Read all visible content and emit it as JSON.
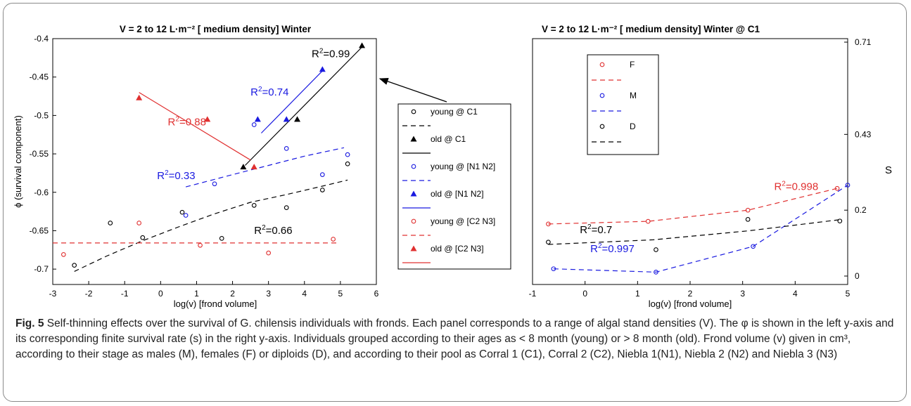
{
  "figure": {
    "caption_label": "Fig. 5",
    "caption_text": "Self-thinning effects over the survival of G. chilensis individuals with fronds. Each panel corresponds to a range of algal stand densities (V). The φ is shown in the left y-axis and its corresponding finite survival rate (s) in the right y-axis. Individuals grouped according to their ages as < 8 month (young) or > 8 month (old). Frond volume (v) given in cm³, according to their stage as males (M), females (F) or diploids (D), and according to their pool as Corral 1 (C1), Corral 2 (C2), Niebla 1(N1), Niebla 2 (N2) and Niebla 3 (N3)"
  },
  "chart_data": [
    {
      "type": "scatter",
      "title": "V = 2 to 12 L·m⁻² [ medium density] Winter",
      "xlabel": "log(v) [frond volume]",
      "ylabel": "ϕ (survival component)",
      "xlim": [
        -3,
        6
      ],
      "ylim": [
        -0.72,
        -0.4
      ],
      "xticks": [
        -3,
        -2,
        -1,
        0,
        1,
        2,
        3,
        4,
        5,
        6
      ],
      "yticks": [
        -0.7,
        -0.65,
        -0.6,
        -0.55,
        -0.5,
        -0.45,
        -0.4
      ],
      "grid": false,
      "legend_position": "right-outside",
      "series": [
        {
          "name": "young @ C1",
          "color": "#000000",
          "marker": "circle",
          "points": [
            [
              -2.4,
              -0.695
            ],
            [
              -1.4,
              -0.64
            ],
            [
              -0.5,
              -0.659
            ],
            [
              0.6,
              -0.626
            ],
            [
              1.7,
              -0.66
            ],
            [
              2.6,
              -0.617
            ],
            [
              3.5,
              -0.62
            ],
            [
              4.5,
              -0.597
            ],
            [
              5.2,
              -0.563
            ]
          ]
        },
        {
          "name": "young @ C1 fit",
          "color": "#000000",
          "line": "dashed",
          "r2_label": "R²=0.66",
          "r2_at": [
            2.6,
            -0.654
          ],
          "fit": [
            [
              -2.4,
              -0.703
            ],
            [
              -1.5,
              -0.683
            ],
            [
              -0.5,
              -0.663
            ],
            [
              0.5,
              -0.645
            ],
            [
              1.5,
              -0.628
            ],
            [
              2.5,
              -0.613
            ],
            [
              3.5,
              -0.603
            ],
            [
              4.5,
              -0.592
            ],
            [
              5.2,
              -0.584
            ]
          ]
        },
        {
          "name": "old @ C1",
          "color": "#000000",
          "marker": "triangle",
          "points": [
            [
              2.3,
              -0.567
            ],
            [
              3.8,
              -0.505
            ],
            [
              5.6,
              -0.409
            ]
          ]
        },
        {
          "name": "old @ C1 fit",
          "color": "#000000",
          "line": "solid",
          "r2_label": "R²=0.99",
          "r2_at": [
            4.2,
            -0.424
          ],
          "fit": [
            [
              2.35,
              -0.565
            ],
            [
              5.6,
              -0.411
            ]
          ]
        },
        {
          "name": "young @ [N1 N2]",
          "color": "#1a1ae0",
          "marker": "circle",
          "points": [
            [
              0.7,
              -0.63
            ],
            [
              1.5,
              -0.589
            ],
            [
              2.6,
              -0.512
            ],
            [
              3.5,
              -0.543
            ],
            [
              4.5,
              -0.577
            ],
            [
              5.2,
              -0.551
            ]
          ]
        },
        {
          "name": "young @ [N1 N2] fit",
          "color": "#1a1ae0",
          "line": "dashed",
          "r2_label": "R²=0.33",
          "r2_at": [
            -0.1,
            -0.583
          ],
          "fit": [
            [
              0.7,
              -0.593
            ],
            [
              2,
              -0.577
            ],
            [
              3,
              -0.565
            ],
            [
              4,
              -0.553
            ],
            [
              5.1,
              -0.542
            ]
          ]
        },
        {
          "name": "old @ [N1 N2]",
          "color": "#1a1ae0",
          "marker": "triangle",
          "points": [
            [
              2.7,
              -0.505
            ],
            [
              3.5,
              -0.505
            ],
            [
              4.5,
              -0.44
            ]
          ]
        },
        {
          "name": "old @ [N1 N2] fit",
          "color": "#1a1ae0",
          "line": "solid",
          "r2_label": "R²=0.74",
          "r2_at": [
            2.5,
            -0.474
          ],
          "fit": [
            [
              2.8,
              -0.523
            ],
            [
              4.5,
              -0.442
            ]
          ]
        },
        {
          "name": "young @ [C2 N3]",
          "color": "#e03030",
          "marker": "circle",
          "points": [
            [
              -2.7,
              -0.681
            ],
            [
              -0.6,
              -0.64
            ],
            [
              1.1,
              -0.669
            ],
            [
              3.0,
              -0.679
            ],
            [
              4.8,
              -0.661
            ]
          ]
        },
        {
          "name": "young @ [C2 N3] fit",
          "color": "#e03030",
          "line": "dashed",
          "fit": [
            [
              -3,
              -0.666
            ],
            [
              4.9,
              -0.666
            ]
          ]
        },
        {
          "name": "old @ [C2 N3]",
          "color": "#e03030",
          "marker": "triangle",
          "points": [
            [
              -0.6,
              -0.477
            ],
            [
              1.3,
              -0.505
            ],
            [
              2.6,
              -0.567
            ]
          ]
        },
        {
          "name": "old @ [C2 N3] fit",
          "color": "#e03030",
          "line": "solid",
          "r2_label": "R²=0.88",
          "r2_at": [
            0.2,
            -0.513
          ],
          "fit": [
            [
              -0.6,
              -0.47
            ],
            [
              2.5,
              -0.558
            ]
          ]
        }
      ]
    },
    {
      "type": "line",
      "title": "V = 2 to 12 L·m⁻² [ medium density] Winter @ C1",
      "xlabel": "log(v) [frond volume]",
      "ylabel_right": "S",
      "xlim": [
        -1,
        5
      ],
      "ylim": [
        0,
        0.71
      ],
      "xticks": [
        -1,
        0,
        1,
        2,
        3,
        4,
        5
      ],
      "yticks_right": [
        0,
        0.2,
        0.43,
        0.71
      ],
      "grid": false,
      "legend_position": "top-left",
      "series": [
        {
          "name": "F",
          "color": "#e03030",
          "marker": "circle",
          "points": [
            [
              -0.7,
              0.158
            ],
            [
              1.2,
              0.166
            ],
            [
              3.1,
              0.2
            ],
            [
              4.8,
              0.266
            ]
          ]
        },
        {
          "name": "F fit",
          "color": "#e03030",
          "line": "dashed",
          "r2_label": "R²=0.998",
          "r2_at": [
            3.6,
            0.261
          ],
          "fit": [
            [
              -0.7,
              0.158
            ],
            [
              1.2,
              0.166
            ],
            [
              3.1,
              0.2
            ],
            [
              4.85,
              0.268
            ]
          ]
        },
        {
          "name": "M",
          "color": "#1a1ae0",
          "marker": "circle",
          "points": [
            [
              -0.6,
              0.022
            ],
            [
              1.35,
              0.012
            ],
            [
              3.2,
              0.09
            ],
            [
              5.0,
              0.276
            ]
          ]
        },
        {
          "name": "M fit",
          "color": "#1a1ae0",
          "line": "dashed",
          "r2_label": "R²=0.997",
          "r2_at": [
            0.1,
            0.072
          ],
          "fit": [
            [
              -0.6,
              0.022
            ],
            [
              1.35,
              0.012
            ],
            [
              3.2,
              0.09
            ],
            [
              5.0,
              0.276
            ]
          ]
        },
        {
          "name": "D",
          "color": "#000000",
          "marker": "circle",
          "points": [
            [
              -0.7,
              0.103
            ],
            [
              1.35,
              0.08
            ],
            [
              3.1,
              0.172
            ],
            [
              4.85,
              0.167
            ]
          ]
        },
        {
          "name": "D fit",
          "color": "#000000",
          "line": "dashed",
          "r2_label": "R²=0.7",
          "r2_at": [
            -0.1,
            0.13
          ],
          "fit": [
            [
              -0.7,
              0.096
            ],
            [
              1.3,
              0.11
            ],
            [
              3.1,
              0.137
            ],
            [
              4.9,
              0.172
            ]
          ]
        }
      ]
    }
  ]
}
